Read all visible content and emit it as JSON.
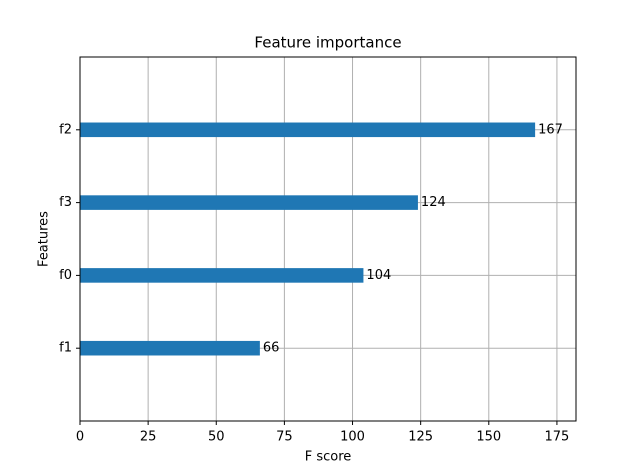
{
  "chart_data": {
    "type": "barh",
    "title": "Feature importance",
    "x_label": "F score",
    "y_label": "Features",
    "categories": [
      "f1",
      "f0",
      "f3",
      "f2"
    ],
    "values": [
      66,
      104,
      124,
      167
    ],
    "color": "#1f77b4",
    "xlim": [
      0,
      182
    ],
    "xticks": [
      0,
      25,
      50,
      75,
      100,
      125,
      150,
      175
    ],
    "grid": true
  }
}
